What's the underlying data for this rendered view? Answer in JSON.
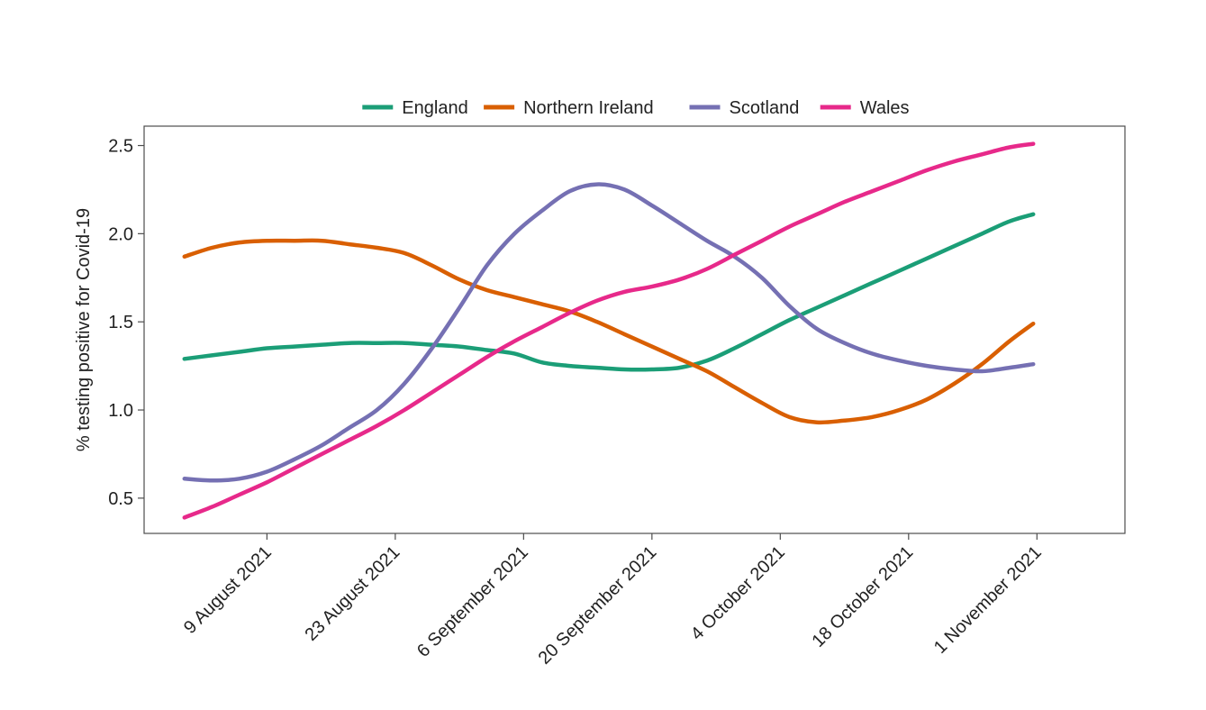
{
  "chart_data": {
    "type": "line",
    "title": "",
    "xlabel": "",
    "ylabel": "% testing positive for Covid-19",
    "ylim": [
      0.3,
      2.61
    ],
    "yticks": [
      0.5,
      1.0,
      1.5,
      2.0,
      2.5
    ],
    "ytick_labels": [
      "0.5",
      "1.0",
      "1.5",
      "2.0",
      "2.5"
    ],
    "xlim_days": [
      -13.4,
      93.6
    ],
    "xticks": [
      {
        "label": "9 August 2021",
        "day": 0
      },
      {
        "label": "23 August 2021",
        "day": 14
      },
      {
        "label": "6 September 2021",
        "day": 28
      },
      {
        "label": "20 September 2021",
        "day": 42
      },
      {
        "label": "4 October 2021",
        "day": 56
      },
      {
        "label": "18 October 2021",
        "day": 70
      },
      {
        "label": "1 November 2021",
        "day": 84
      }
    ],
    "x_days": [
      -9,
      -6,
      -3,
      0,
      3,
      6,
      9,
      12,
      15,
      18,
      21,
      24,
      27,
      30,
      33,
      36,
      39,
      42,
      45,
      48,
      51,
      54,
      57,
      60,
      63,
      66,
      69,
      72,
      75,
      78,
      81,
      83.6
    ],
    "legend_position": "top",
    "series": [
      {
        "name": "England",
        "color": "#1b9e77",
        "values": [
          1.29,
          1.31,
          1.33,
          1.35,
          1.36,
          1.37,
          1.38,
          1.38,
          1.38,
          1.37,
          1.36,
          1.34,
          1.32,
          1.27,
          1.25,
          1.24,
          1.23,
          1.23,
          1.24,
          1.28,
          1.35,
          1.43,
          1.51,
          1.58,
          1.65,
          1.72,
          1.79,
          1.86,
          1.93,
          2.0,
          2.07,
          2.11
        ]
      },
      {
        "name": "Northern Ireland",
        "color": "#d95f02",
        "values": [
          1.87,
          1.92,
          1.95,
          1.96,
          1.96,
          1.96,
          1.94,
          1.92,
          1.89,
          1.82,
          1.74,
          1.68,
          1.64,
          1.6,
          1.56,
          1.5,
          1.43,
          1.36,
          1.29,
          1.22,
          1.13,
          1.04,
          0.96,
          0.93,
          0.94,
          0.96,
          1.0,
          1.06,
          1.15,
          1.26,
          1.39,
          1.49
        ]
      },
      {
        "name": "Scotland",
        "color": "#7570b3",
        "values": [
          0.61,
          0.6,
          0.61,
          0.65,
          0.72,
          0.8,
          0.9,
          1.0,
          1.15,
          1.35,
          1.58,
          1.82,
          2.0,
          2.13,
          2.24,
          2.28,
          2.25,
          2.16,
          2.06,
          1.96,
          1.87,
          1.75,
          1.59,
          1.46,
          1.38,
          1.32,
          1.28,
          1.25,
          1.23,
          1.22,
          1.24,
          1.26
        ]
      },
      {
        "name": "Wales",
        "color": "#e7298a",
        "values": [
          0.39,
          0.45,
          0.52,
          0.59,
          0.67,
          0.75,
          0.83,
          0.91,
          1.0,
          1.1,
          1.2,
          1.3,
          1.39,
          1.47,
          1.55,
          1.62,
          1.67,
          1.7,
          1.74,
          1.8,
          1.88,
          1.96,
          2.04,
          2.11,
          2.18,
          2.24,
          2.3,
          2.36,
          2.41,
          2.45,
          2.49,
          2.51
        ]
      }
    ]
  }
}
